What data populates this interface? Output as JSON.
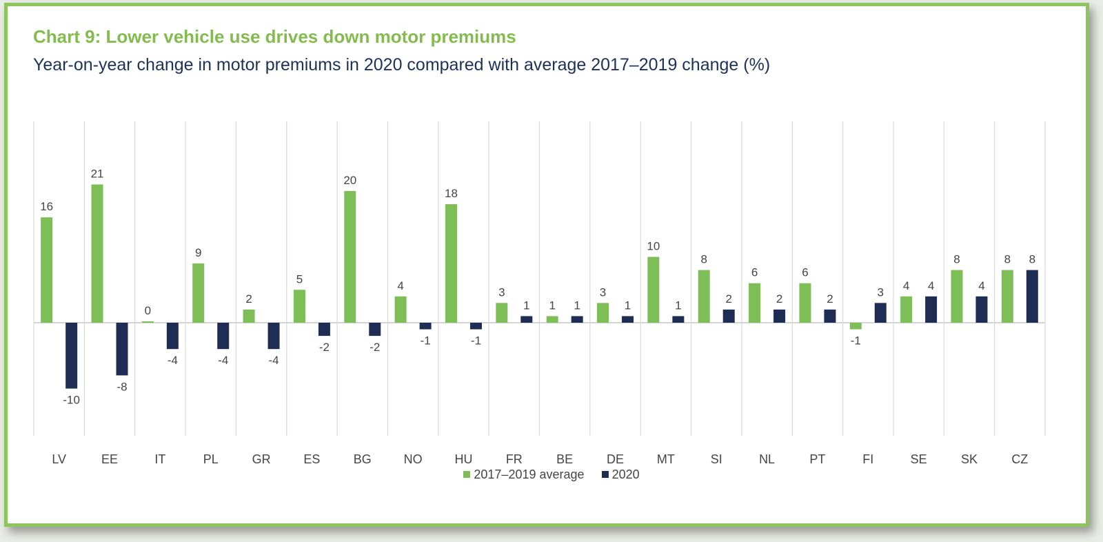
{
  "header": {
    "title": "Chart 9: Lower vehicle use drives down motor premiums",
    "subtitle": "Year-on-year change in motor premiums in 2020 compared with average 2017–2019 change (%)"
  },
  "colors": {
    "frame": "#8dc55d",
    "title": "#84bb4f",
    "subtitle": "#1e3158",
    "series_avg": "#7dbe57",
    "series_2020": "#1f2d55"
  },
  "legend": {
    "avg_label": "2017–2019 average",
    "y2020_label": "2020",
    "placement": "bottom-center"
  },
  "chart_data": {
    "type": "bar",
    "title": "Chart 9: Lower vehicle use drives down motor premiums",
    "subtitle": "Year-on-year change in motor premiums in 2020 compared with average 2017–2019 change (%)",
    "xlabel": "",
    "ylabel": "",
    "ylim": [
      -12,
      22
    ],
    "grid": "vertical category separators",
    "legend_position": "bottom",
    "categories": [
      "LV",
      "EE",
      "IT",
      "PL",
      "GR",
      "ES",
      "BG",
      "NO",
      "HU",
      "FR",
      "BE",
      "DE",
      "MT",
      "SI",
      "NL",
      "PT",
      "FI",
      "SE",
      "SK",
      "CZ"
    ],
    "series": [
      {
        "name": "2017–2019 average",
        "values": [
          16,
          21,
          0,
          9,
          2,
          5,
          20,
          4,
          18,
          3,
          1,
          3,
          10,
          8,
          6,
          6,
          -1,
          4,
          8,
          8
        ],
        "labels": [
          "16",
          "21",
          "0",
          "9",
          "2",
          "5",
          "20",
          "4",
          "18",
          "3",
          "1",
          "3",
          "10",
          "8",
          "6",
          "6",
          "-1",
          "4",
          "8",
          "8"
        ]
      },
      {
        "name": "2020",
        "values": [
          -10,
          -8,
          -4,
          -4,
          -4,
          -2,
          -2,
          -1,
          -1,
          1,
          1,
          1,
          1,
          2,
          2,
          2,
          3,
          4,
          4,
          8
        ],
        "labels": [
          "-10",
          "-8",
          "-4",
          "-4",
          "-4",
          "-2",
          "-2",
          "-1",
          "-1",
          "1",
          "1",
          "1",
          "1",
          "2",
          "2",
          "2",
          "3",
          "4",
          "4",
          "8"
        ]
      }
    ]
  }
}
